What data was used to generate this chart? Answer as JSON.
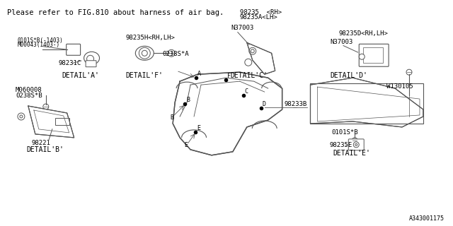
{
  "bg_color": "#ffffff",
  "border_color": "#000000",
  "line_color": "#555555",
  "title_text": "Please refer to FIG.810 about harness of air bag.",
  "diagram_id": "A343001175",
  "font_family": "monospace",
  "title_fontsize": 7.5,
  "label_fontsize": 6.5,
  "detail_fontsize": 7.0,
  "part_labels": {
    "detail_a": "DETAIL'A'",
    "detail_b": "DETAIL'B'",
    "detail_c": "DETAIL'C'",
    "detail_d": "DETAIL'D'",
    "detail_e": "DETAIL'E'",
    "detail_f": "DETAIL'F'"
  },
  "part_numbers": {
    "a_main": "0101S*B(-1403)",
    "a_sub": "M00043(1403-)",
    "a_part": "98231C",
    "b_bolt": "M060008",
    "b_wire": "0238S*B",
    "b_part": "98221",
    "c_top1": "98235  <RH>",
    "c_top2": "98235A<LH>",
    "c_nut": "N37003",
    "d_label": "98235D<RH,LH>",
    "d_nut": "N37003",
    "e_bolt": "0101S*B",
    "e_part": "98235E",
    "f_label": "98235H<RH,LH>",
    "f_wire": "0238S*A",
    "main_part": "98233B",
    "w_part": "W130105"
  }
}
